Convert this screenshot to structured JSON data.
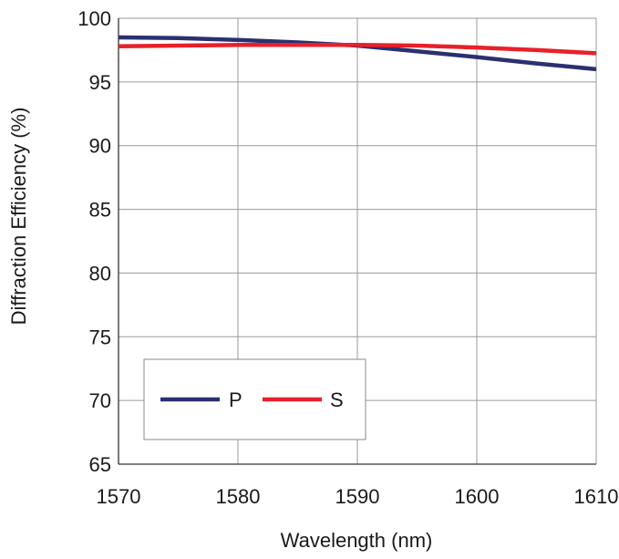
{
  "chart_data": {
    "type": "line",
    "xlabel": "Wavelength (nm)",
    "ylabel": "Diffraction Efficiency (%)",
    "xlim": [
      1570,
      1610
    ],
    "ylim": [
      65,
      100
    ],
    "xticks": [
      1570,
      1580,
      1590,
      1600,
      1610
    ],
    "yticks": [
      65,
      70,
      75,
      80,
      85,
      90,
      95,
      100
    ],
    "grid": true,
    "legend_position": "bottom-left",
    "series": [
      {
        "name": "P",
        "color": "#2b3070",
        "x": [
          1570,
          1575,
          1580,
          1585,
          1590,
          1595,
          1600,
          1605,
          1610
        ],
        "y": [
          98.5,
          98.45,
          98.3,
          98.1,
          97.85,
          97.4,
          96.95,
          96.45,
          96.0
        ]
      },
      {
        "name": "S",
        "color": "#e8202a",
        "x": [
          1570,
          1575,
          1580,
          1585,
          1590,
          1595,
          1600,
          1605,
          1610
        ],
        "y": [
          97.8,
          97.85,
          97.9,
          97.9,
          97.9,
          97.85,
          97.7,
          97.5,
          97.25
        ]
      }
    ]
  }
}
